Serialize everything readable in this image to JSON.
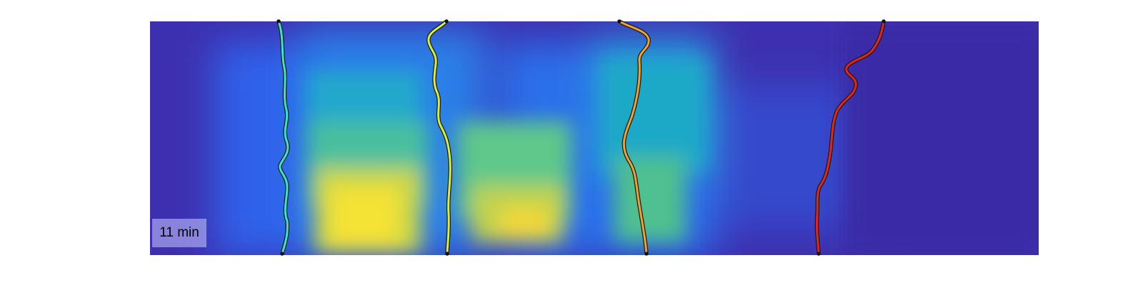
{
  "time_label": "11 min",
  "colormap": {
    "low": "#3e2aa5",
    "mid_low": "#2f6bf0",
    "mid": "#1fb7c3",
    "mid_high": "#8ccc5a",
    "high": "#ffe628"
  },
  "trace_colors": [
    "#39e6c8",
    "#d8f03a",
    "#f4a02a",
    "#e42418"
  ]
}
